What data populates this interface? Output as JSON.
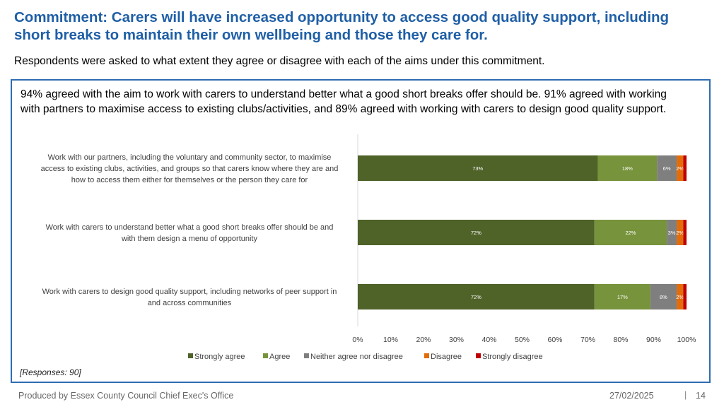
{
  "header": {
    "title": "Commitment: Carers will have increased opportunity to access good quality support, including short breaks to maintain their own wellbeing and those they care for.",
    "subtitle": "Respondents were asked to what extent they agree or disagree with each of the aims under this commitment."
  },
  "summary": "94% agreed with the aim to work with carers to understand better what a good short breaks offer should be. 91% agreed with working with partners to maximise access to existing clubs/activities, and 89% agreed with working with carers to design good quality support.",
  "responses_note": "[Responses: 90]",
  "footer": {
    "producer": "Produced by Essex County Council Chief Exec's Office",
    "date": "27/02/2025",
    "separator": "|",
    "page": "14"
  },
  "chart_data": {
    "type": "bar",
    "orientation": "horizontal",
    "stacked": true,
    "categories": [
      "Work with our partners, including the voluntary and community sector, to maximise access to existing clubs, activities, and groups so that carers know where they are and how to access them either for themselves or the person they care for",
      "Work with carers to understand better what a good short breaks offer should be and with them design a menu of opportunity",
      "Work with carers to design good quality support, including networks of peer support in and across communities"
    ],
    "category_lines": [
      [
        "Work with our partners, including the voluntary and community sector, to maximise",
        "access to existing clubs, activities, and groups so that carers know where they are and",
        "how to access them either for themselves or the person they care for"
      ],
      [
        "Work with carers to understand better what a good short breaks offer should be and",
        "with them design a menu of opportunity"
      ],
      [
        "Work with carers to design good quality support, including networks of peer support in",
        "and across communities"
      ]
    ],
    "series": [
      {
        "name": "Strongly agree",
        "color": "#4f6228",
        "values": [
          73,
          72,
          72
        ],
        "labels": [
          "73%",
          "72%",
          "72%"
        ]
      },
      {
        "name": "Agree",
        "color": "#77933c",
        "values": [
          18,
          22,
          17
        ],
        "labels": [
          "18%",
          "22%",
          "17%"
        ]
      },
      {
        "name": "Neither agree nor disagree",
        "color": "#7f7f7f",
        "values": [
          6,
          3,
          8
        ],
        "labels": [
          "6%",
          "3%",
          "8%"
        ]
      },
      {
        "name": "Disagree",
        "color": "#e36c09",
        "values": [
          2,
          2,
          2
        ],
        "labels": [
          "2%",
          "2%",
          "2%"
        ]
      },
      {
        "name": "Strongly disagree",
        "color": "#c00000",
        "values": [
          1,
          1,
          1
        ],
        "labels": [
          "",
          "",
          ""
        ]
      }
    ],
    "xlim": [
      0,
      100
    ],
    "xticks": [
      "0%",
      "10%",
      "20%",
      "30%",
      "40%",
      "50%",
      "60%",
      "70%",
      "80%",
      "90%",
      "100%"
    ],
    "legend_position": "bottom",
    "grid": false
  }
}
